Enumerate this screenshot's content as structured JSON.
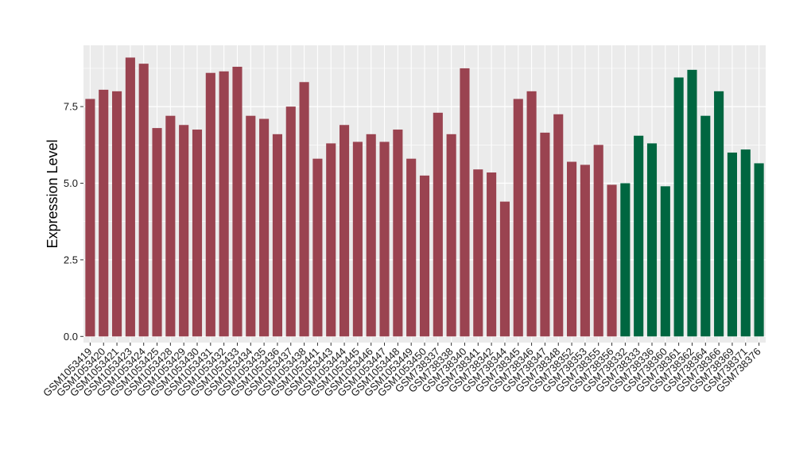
{
  "chart_data": {
    "type": "bar",
    "title": "",
    "xlabel": "",
    "ylabel": "Expression Level",
    "ylim": [
      -0.2,
      9.5
    ],
    "yticks": [
      0.0,
      2.5,
      5.0,
      7.5
    ],
    "ytick_labels": [
      "0.0",
      "2.5",
      "5.0",
      "7.5"
    ],
    "grid": true,
    "legend": "none",
    "colors": {
      "group1": "#9A4350",
      "group2": "#006640",
      "panel": "#EBEBEB",
      "grid": "#FFFFFF"
    },
    "categories": [
      "GSM1053419",
      "GSM1053420",
      "GSM1053421",
      "GSM1053423",
      "GSM1053424",
      "GSM1053425",
      "GSM1053428",
      "GSM1053429",
      "GSM1053430",
      "GSM1053431",
      "GSM1053432",
      "GSM1053433",
      "GSM1053434",
      "GSM1053435",
      "GSM1053436",
      "GSM1053437",
      "GSM1053438",
      "GSM1053441",
      "GSM1053443",
      "GSM1053444",
      "GSM1053445",
      "GSM1053446",
      "GSM1053447",
      "GSM1053448",
      "GSM1053449",
      "GSM1053450",
      "GSM738337",
      "GSM738338",
      "GSM738340",
      "GSM738341",
      "GSM738342",
      "GSM738344",
      "GSM738345",
      "GSM738346",
      "GSM738347",
      "GSM738348",
      "GSM738352",
      "GSM738353",
      "GSM738355",
      "GSM738356",
      "GSM738332",
      "GSM738333",
      "GSM738336",
      "GSM738360",
      "GSM738361",
      "GSM738362",
      "GSM738364",
      "GSM738366",
      "GSM738369",
      "GSM738371",
      "GSM738376"
    ],
    "values": [
      7.75,
      8.05,
      8.0,
      9.1,
      8.9,
      6.8,
      7.2,
      6.9,
      6.75,
      8.6,
      8.65,
      8.8,
      7.2,
      7.1,
      6.6,
      7.5,
      8.3,
      5.8,
      6.3,
      6.9,
      6.35,
      6.6,
      6.35,
      6.75,
      5.8,
      5.25,
      7.3,
      6.6,
      8.75,
      5.45,
      5.35,
      4.4,
      7.75,
      8.0,
      6.65,
      7.25,
      5.7,
      5.6,
      6.25,
      4.95,
      5.0,
      6.55,
      6.3,
      4.9,
      8.45,
      8.7,
      7.2,
      8.0,
      6.0,
      6.1,
      5.65
    ],
    "groups": [
      1,
      1,
      1,
      1,
      1,
      1,
      1,
      1,
      1,
      1,
      1,
      1,
      1,
      1,
      1,
      1,
      1,
      1,
      1,
      1,
      1,
      1,
      1,
      1,
      1,
      1,
      1,
      1,
      1,
      1,
      1,
      1,
      1,
      1,
      1,
      1,
      1,
      1,
      1,
      1,
      2,
      2,
      2,
      2,
      2,
      2,
      2,
      2,
      2,
      2,
      2
    ]
  }
}
